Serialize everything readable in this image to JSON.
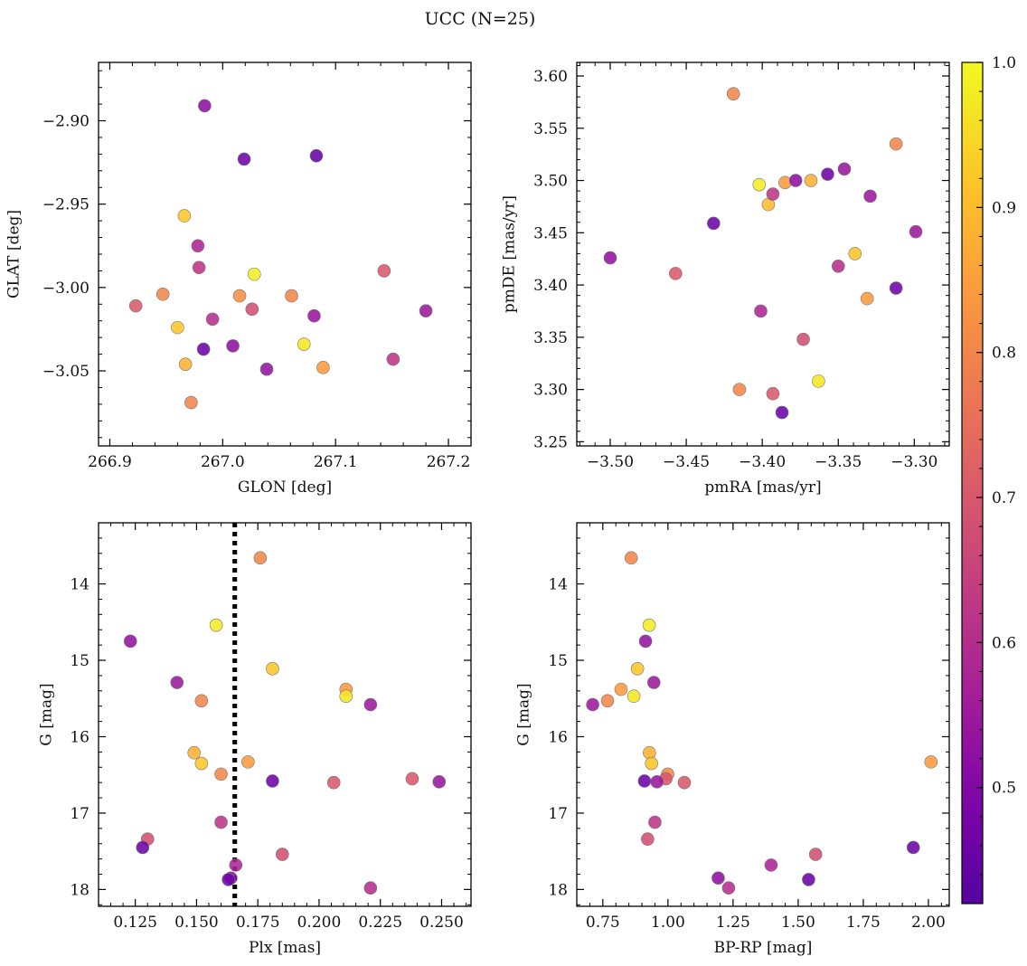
{
  "figure": {
    "title": "UCC (N=25)"
  },
  "colorbar": {
    "colormap": "plasma",
    "range": [
      0.42,
      1.0
    ],
    "ticks": [
      0.5,
      0.6,
      0.7,
      0.8,
      0.9,
      1.0
    ],
    "tick_labels": [
      "0.5",
      "0.6",
      "0.7",
      "0.8",
      "0.9",
      "1.0"
    ]
  },
  "chart_data": [
    {
      "type": "scatter",
      "panel": "top-left",
      "xlabel": "GLON [deg]",
      "ylabel": "GLAT [deg]",
      "xlim": [
        266.89,
        267.22
      ],
      "ylim": [
        -3.095,
        -2.865
      ],
      "y_inverted": false,
      "xticks": [
        266.9,
        267.0,
        267.1,
        267.2
      ],
      "xtick_labels": [
        "266.9",
        "267.0",
        "267.1",
        "267.2"
      ],
      "yticks": [
        -2.9,
        -2.95,
        -3.0,
        -3.05
      ],
      "ytick_labels": [
        "−2.90",
        "−2.95",
        "−3.00",
        "−3.05"
      ],
      "x": [
        266.984,
        267.019,
        267.083,
        266.966,
        266.978,
        266.979,
        267.028,
        267.143,
        266.947,
        267.015,
        267.061,
        266.923,
        267.026,
        266.991,
        267.081,
        266.96,
        267.18,
        267.009,
        267.072,
        266.983,
        266.967,
        267.039,
        267.089,
        267.151,
        266.972
      ],
      "y": [
        -2.891,
        -2.923,
        -2.921,
        -2.957,
        -2.975,
        -2.988,
        -2.992,
        -2.99,
        -3.004,
        -3.005,
        -3.005,
        -3.011,
        -3.013,
        -3.019,
        -3.017,
        -3.024,
        -3.014,
        -3.035,
        -3.034,
        -3.037,
        -3.046,
        -3.049,
        -3.048,
        -3.043,
        -3.069
      ],
      "color_values": [
        0.52,
        0.46,
        0.45,
        0.92,
        0.58,
        0.62,
        0.98,
        0.7,
        0.8,
        0.82,
        0.8,
        0.7,
        0.68,
        0.6,
        0.54,
        0.92,
        0.55,
        0.52,
        0.97,
        0.46,
        0.88,
        0.53,
        0.84,
        0.62,
        0.8
      ]
    },
    {
      "type": "scatter",
      "panel": "top-right",
      "xlabel": "pmRA [mas/yr]",
      "ylabel": "pmDE [mas/yr]",
      "xlim": [
        -3.522,
        -3.277
      ],
      "ylim": [
        3.246,
        3.613
      ],
      "y_inverted": false,
      "xticks": [
        -3.5,
        -3.45,
        -3.4,
        -3.35,
        -3.3
      ],
      "xtick_labels": [
        "−3.50",
        "−3.45",
        "−3.40",
        "−3.35",
        "−3.30"
      ],
      "yticks": [
        3.25,
        3.3,
        3.35,
        3.4,
        3.45,
        3.5,
        3.55,
        3.6
      ],
      "ytick_labels": [
        "3.25",
        "3.30",
        "3.35",
        "3.40",
        "3.45",
        "3.50",
        "3.55",
        "3.60"
      ],
      "x": [
        -3.419,
        -3.312,
        -3.402,
        -3.396,
        -3.385,
        -3.368,
        -3.378,
        -3.393,
        -3.357,
        -3.346,
        -3.329,
        -3.432,
        -3.5,
        -3.457,
        -3.299,
        -3.339,
        -3.35,
        -3.312,
        -3.331,
        -3.401,
        -3.373,
        -3.415,
        -3.393,
        -3.363,
        -3.387
      ],
      "y": [
        3.583,
        3.535,
        3.496,
        3.477,
        3.498,
        3.5,
        3.5,
        3.487,
        3.506,
        3.511,
        3.485,
        3.459,
        3.426,
        3.411,
        3.451,
        3.43,
        3.418,
        3.397,
        3.387,
        3.375,
        3.348,
        3.3,
        3.296,
        3.308,
        3.278
      ],
      "color_values": [
        0.8,
        0.8,
        0.98,
        0.9,
        0.84,
        0.88,
        0.52,
        0.62,
        0.46,
        0.54,
        0.55,
        0.46,
        0.53,
        0.7,
        0.55,
        0.92,
        0.6,
        0.46,
        0.84,
        0.58,
        0.68,
        0.8,
        0.7,
        0.97,
        0.46
      ]
    },
    {
      "type": "scatter",
      "panel": "bottom-left",
      "xlabel": "Plx [mas]",
      "ylabel": "G [mag]",
      "xlim": [
        0.11,
        0.262
      ],
      "ylim": [
        18.22,
        13.2
      ],
      "y_inverted": true,
      "xticks": [
        0.125,
        0.15,
        0.175,
        0.2,
        0.225,
        0.25
      ],
      "xtick_labels": [
        "0.125",
        "0.150",
        "0.175",
        "0.200",
        "0.225",
        "0.250"
      ],
      "yticks": [
        14,
        15,
        16,
        17,
        18
      ],
      "ytick_labels": [
        "14",
        "15",
        "16",
        "17",
        "18"
      ],
      "vertical_line": {
        "x": 0.1656,
        "style": "dotted",
        "color": "#000000"
      },
      "x": [
        0.176,
        0.158,
        0.123,
        0.181,
        0.142,
        0.211,
        0.211,
        0.152,
        0.221,
        0.149,
        0.152,
        0.16,
        0.171,
        0.181,
        0.206,
        0.238,
        0.249,
        0.16,
        0.13,
        0.128,
        0.185,
        0.166,
        0.164,
        0.163,
        0.221
      ],
      "y": [
        13.66,
        14.54,
        14.75,
        15.11,
        15.29,
        15.38,
        15.47,
        15.53,
        15.58,
        16.21,
        16.35,
        16.49,
        16.33,
        16.58,
        16.6,
        16.55,
        16.59,
        17.12,
        17.34,
        17.45,
        17.54,
        17.68,
        17.85,
        17.87,
        17.98
      ],
      "color_values": [
        0.8,
        0.98,
        0.53,
        0.92,
        0.55,
        0.84,
        0.97,
        0.8,
        0.55,
        0.88,
        0.92,
        0.8,
        0.84,
        0.46,
        0.7,
        0.7,
        0.54,
        0.62,
        0.68,
        0.46,
        0.68,
        0.58,
        0.52,
        0.46,
        0.6
      ]
    },
    {
      "type": "scatter",
      "panel": "bottom-right",
      "xlabel": "BP-RP [mag]",
      "ylabel": "G [mag]",
      "xlim": [
        0.65,
        2.08
      ],
      "ylim": [
        18.22,
        13.2
      ],
      "y_inverted": true,
      "xticks": [
        0.75,
        1.0,
        1.25,
        1.5,
        1.75,
        2.0
      ],
      "xtick_labels": [
        "0.75",
        "1.00",
        "1.25",
        "1.50",
        "1.75",
        "2.00"
      ],
      "yticks": [
        14,
        15,
        16,
        17,
        18
      ],
      "ytick_labels": [
        "14",
        "15",
        "16",
        "17",
        "18"
      ],
      "x": [
        0.859,
        0.928,
        0.914,
        0.883,
        0.946,
        0.82,
        0.869,
        0.768,
        0.711,
        0.929,
        0.937,
        0.999,
        2.01,
        0.91,
        0.992,
        1.063,
        0.958,
        0.95,
        0.922,
        1.942,
        1.567,
        1.396,
        1.193,
        1.54,
        1.233
      ],
      "y": [
        13.66,
        14.54,
        14.75,
        15.11,
        15.29,
        15.38,
        15.47,
        15.53,
        15.58,
        16.21,
        16.35,
        16.49,
        16.33,
        16.58,
        16.55,
        16.6,
        16.59,
        17.12,
        17.34,
        17.45,
        17.54,
        17.68,
        17.85,
        17.87,
        17.98
      ],
      "color_values": [
        0.8,
        0.98,
        0.53,
        0.92,
        0.55,
        0.84,
        0.97,
        0.8,
        0.55,
        0.88,
        0.92,
        0.8,
        0.84,
        0.46,
        0.7,
        0.7,
        0.54,
        0.62,
        0.68,
        0.46,
        0.68,
        0.58,
        0.52,
        0.46,
        0.6
      ]
    }
  ]
}
